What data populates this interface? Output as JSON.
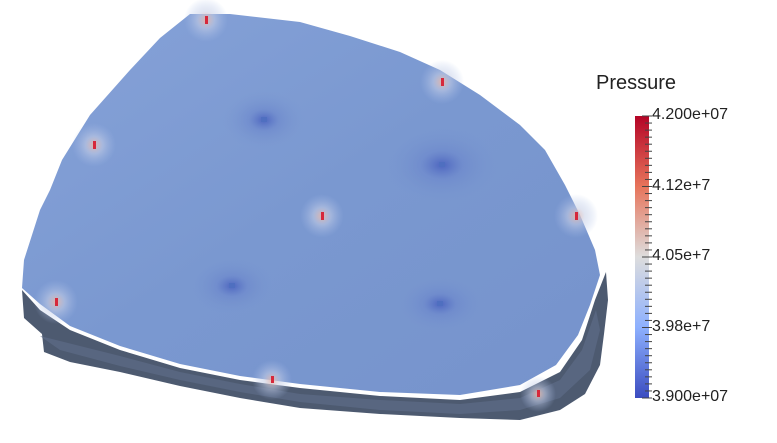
{
  "legend": {
    "title": "Pressure",
    "labels": [
      "4.200e+07",
      "4.12e+7",
      "4.05e+7",
      "3.98e+7",
      "3.900e+07"
    ]
  },
  "colors": {
    "surface": "#7b99d0",
    "side": "#4d5a70",
    "wells_injector": "#d6283b",
    "wells_producer": "#4f6fc0",
    "scale_high": "#b40426",
    "scale_mid": "#dddddd",
    "scale_low": "#3b4cc0"
  },
  "wells": [
    {
      "type": "injector"
    },
    {
      "type": "injector"
    },
    {
      "type": "injector"
    },
    {
      "type": "injector"
    },
    {
      "type": "injector"
    },
    {
      "type": "injector"
    },
    {
      "type": "injector"
    },
    {
      "type": "injector"
    },
    {
      "type": "producer"
    },
    {
      "type": "producer"
    },
    {
      "type": "producer"
    },
    {
      "type": "producer"
    }
  ]
}
